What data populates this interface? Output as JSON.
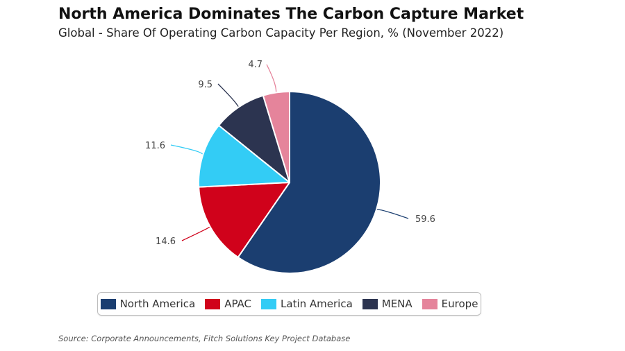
{
  "header": {
    "title": "North America Dominates The Carbon Capture Market",
    "subtitle": "Global - Share Of Operating Carbon Capacity Per Region, % (November 2022)"
  },
  "footer": {
    "source": "Source: Corporate Announcements, Fitch Solutions Key Project Database"
  },
  "chart_data": {
    "type": "pie",
    "title": "North America Dominates The Carbon Capture Market",
    "subtitle": "Global - Share Of Operating Carbon Capacity Per Region, % (November 2022)",
    "categories": [
      "North America",
      "APAC",
      "Latin America",
      "MENA",
      "Europe"
    ],
    "values": [
      59.6,
      14.6,
      11.6,
      9.5,
      4.7
    ],
    "value_labels": [
      "59.6",
      "14.6",
      "11.6",
      "9.5",
      "4.7"
    ],
    "colors": [
      "#1b3e70",
      "#d0021b",
      "#33ccf5",
      "#2c3450",
      "#e5849b"
    ],
    "legend_position": "bottom",
    "start_angle_deg": 0,
    "direction": "clockwise"
  }
}
